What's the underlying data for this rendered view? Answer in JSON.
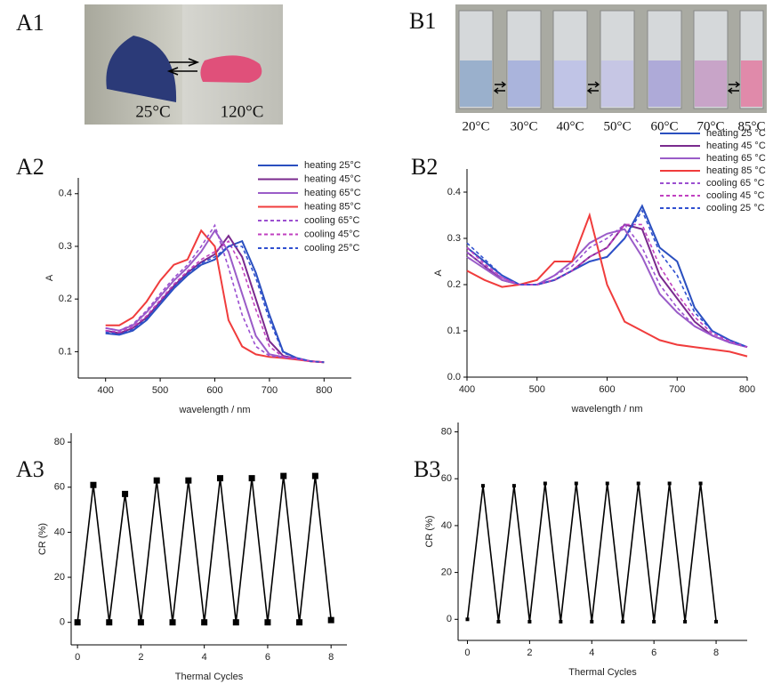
{
  "photos": {
    "A1": {
      "panel_label": "A1",
      "temps": [
        "25°C",
        "120°C"
      ]
    },
    "B1": {
      "panel_label": "B1",
      "temps": [
        "20°C",
        "30°C",
        "40°C",
        "50°C",
        "60°C",
        "70°C",
        "85°C"
      ]
    }
  },
  "chart_data": [
    {
      "type": "line",
      "panel_label": "A2",
      "x_label": "wavelength / nm",
      "y_label": "A",
      "legend": "upper right",
      "x": [
        400,
        425,
        450,
        475,
        500,
        525,
        550,
        575,
        600,
        625,
        650,
        675,
        700,
        725,
        750,
        775,
        800
      ],
      "xlim": [
        350,
        850
      ],
      "ylim": [
        0.05,
        0.43
      ],
      "xticks": [
        400,
        500,
        600,
        700,
        800
      ],
      "yticks": [
        0.1,
        0.2,
        0.3,
        0.4
      ],
      "series": [
        {
          "name": "heating 25°C",
          "color": "#2a4fbf",
          "dashed": false,
          "values": [
            0.135,
            0.132,
            0.14,
            0.16,
            0.19,
            0.22,
            0.245,
            0.265,
            0.275,
            0.3,
            0.31,
            0.25,
            0.17,
            0.1,
            0.088,
            0.082,
            0.08
          ]
        },
        {
          "name": "heating 45°C",
          "color": "#7a2a8e",
          "dashed": false,
          "values": [
            0.14,
            0.135,
            0.145,
            0.165,
            0.195,
            0.225,
            0.25,
            0.27,
            0.285,
            0.32,
            0.28,
            0.2,
            0.12,
            0.092,
            0.087,
            0.082,
            0.08
          ]
        },
        {
          "name": "heating 65°C",
          "color": "#9a5cc8",
          "dashed": false,
          "values": [
            0.145,
            0.14,
            0.15,
            0.175,
            0.205,
            0.235,
            0.26,
            0.29,
            0.33,
            0.29,
            0.21,
            0.13,
            0.095,
            0.09,
            0.086,
            0.082,
            0.08
          ]
        },
        {
          "name": "heating 85°C",
          "color": "#f03c3c",
          "dashed": false,
          "values": [
            0.15,
            0.15,
            0.165,
            0.195,
            0.235,
            0.265,
            0.275,
            0.33,
            0.3,
            0.16,
            0.11,
            0.095,
            0.09,
            0.088,
            0.085,
            0.082,
            0.08
          ]
        },
        {
          "name": "cooling 65°C",
          "color": "#9b4fd0",
          "dashed": true,
          "values": [
            0.145,
            0.14,
            0.152,
            0.178,
            0.21,
            0.24,
            0.265,
            0.3,
            0.34,
            0.26,
            0.17,
            0.11,
            0.092,
            0.089,
            0.086,
            0.082,
            0.08
          ]
        },
        {
          "name": "cooling 45°C",
          "color": "#c040c0",
          "dashed": true,
          "values": [
            0.14,
            0.137,
            0.147,
            0.168,
            0.198,
            0.228,
            0.253,
            0.275,
            0.29,
            0.31,
            0.26,
            0.18,
            0.11,
            0.09,
            0.087,
            0.082,
            0.08
          ]
        },
        {
          "name": "cooling 25°C",
          "color": "#3050d0",
          "dashed": true,
          "values": [
            0.137,
            0.133,
            0.142,
            0.162,
            0.192,
            0.222,
            0.248,
            0.268,
            0.28,
            0.3,
            0.3,
            0.24,
            0.16,
            0.098,
            0.088,
            0.082,
            0.08
          ]
        }
      ]
    },
    {
      "type": "line",
      "panel_label": "B2",
      "x_label": "wavelength / nm",
      "y_label": "A",
      "legend": "upper right",
      "x": [
        400,
        425,
        450,
        475,
        500,
        525,
        550,
        575,
        600,
        625,
        650,
        675,
        700,
        725,
        750,
        775,
        800
      ],
      "xlim": [
        400,
        800
      ],
      "ylim": [
        0,
        0.45
      ],
      "xticks": [
        400,
        500,
        600,
        700,
        800
      ],
      "yticks": [
        {
          "value": 0,
          "label": "0.0"
        },
        0.1,
        0.2,
        0.3,
        0.4
      ],
      "series": [
        {
          "name": "heating 25 °C",
          "color": "#2a4fbf",
          "dashed": false,
          "values": [
            0.28,
            0.25,
            0.22,
            0.2,
            0.2,
            0.21,
            0.23,
            0.25,
            0.26,
            0.3,
            0.37,
            0.28,
            0.25,
            0.15,
            0.1,
            0.08,
            0.065
          ]
        },
        {
          "name": "heating 45 °C",
          "color": "#7a2a8e",
          "dashed": false,
          "values": [
            0.27,
            0.24,
            0.21,
            0.2,
            0.2,
            0.21,
            0.23,
            0.26,
            0.28,
            0.33,
            0.32,
            0.22,
            0.17,
            0.12,
            0.09,
            0.075,
            0.065
          ]
        },
        {
          "name": "heating 65 °C",
          "color": "#9a5cc8",
          "dashed": false,
          "values": [
            0.26,
            0.235,
            0.21,
            0.2,
            0.2,
            0.22,
            0.25,
            0.29,
            0.31,
            0.32,
            0.26,
            0.18,
            0.14,
            0.11,
            0.09,
            0.075,
            0.065
          ]
        },
        {
          "name": "heating 85 °C",
          "color": "#f03c3c",
          "dashed": false,
          "values": [
            0.23,
            0.21,
            0.195,
            0.2,
            0.21,
            0.25,
            0.25,
            0.35,
            0.2,
            0.12,
            0.1,
            0.08,
            0.07,
            0.065,
            0.06,
            0.055,
            0.045
          ]
        },
        {
          "name": "cooling 65 °C",
          "color": "#9b4fd0",
          "dashed": true,
          "values": [
            0.27,
            0.24,
            0.215,
            0.2,
            0.2,
            0.22,
            0.24,
            0.28,
            0.3,
            0.33,
            0.28,
            0.2,
            0.15,
            0.11,
            0.09,
            0.075,
            0.065
          ]
        },
        {
          "name": "cooling 45 °C",
          "color": "#c040c0",
          "dashed": true,
          "values": [
            0.28,
            0.245,
            0.215,
            0.2,
            0.2,
            0.21,
            0.23,
            0.26,
            0.28,
            0.33,
            0.33,
            0.24,
            0.18,
            0.13,
            0.095,
            0.078,
            0.065
          ]
        },
        {
          "name": "cooling 25 °C",
          "color": "#3050d0",
          "dashed": true,
          "values": [
            0.29,
            0.255,
            0.22,
            0.2,
            0.2,
            0.21,
            0.23,
            0.25,
            0.26,
            0.3,
            0.36,
            0.27,
            0.22,
            0.14,
            0.1,
            0.08,
            0.065
          ]
        }
      ]
    },
    {
      "type": "line",
      "panel_label": "A3",
      "x_label": "Thermal Cycles",
      "y_label": "CR (%)",
      "marker": "square",
      "color": "#000000",
      "x": [
        0,
        0.5,
        1,
        1.5,
        2,
        2.5,
        3,
        3.5,
        4,
        4.5,
        5,
        5.5,
        6,
        6.5,
        7,
        7.5,
        8
      ],
      "values": [
        0,
        61,
        0,
        57,
        0,
        63,
        0,
        63,
        0,
        64,
        0,
        64,
        0,
        65,
        0,
        65,
        1
      ],
      "xlim": [
        -0.2,
        8.5
      ],
      "ylim": [
        -10,
        84
      ],
      "xticks": [
        0,
        2,
        4,
        6,
        8
      ],
      "yticks": [
        0,
        20,
        40,
        60,
        80
      ]
    },
    {
      "type": "line",
      "panel_label": "B3",
      "x_label": "Thermal Cycles",
      "y_label": "CR (%)",
      "marker": "dot",
      "color": "#000000",
      "x": [
        0,
        0.5,
        1,
        1.5,
        2,
        2.5,
        3,
        3.5,
        4,
        4.5,
        5,
        5.5,
        6,
        6.5,
        7,
        7.5,
        8
      ],
      "values": [
        0,
        57,
        -1,
        57,
        -1,
        58,
        -1,
        58,
        -1,
        58,
        -1,
        58,
        -1,
        58,
        -1,
        58,
        -1
      ],
      "xlim": [
        -0.3,
        9
      ],
      "ylim": [
        -9,
        84
      ],
      "xticks": [
        0,
        2,
        4,
        6,
        8
      ],
      "yticks": [
        0,
        20,
        40,
        60,
        80
      ]
    }
  ]
}
